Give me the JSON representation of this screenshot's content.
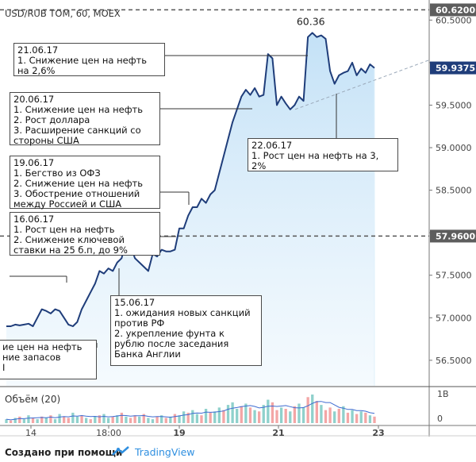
{
  "chart_data": {
    "type": "area",
    "title": "USD/RUB TOM, 60, MOEX",
    "price_axis": {
      "ticks": [
        "60.5000",
        "60.0000",
        "59.5000",
        "59.0000",
        "58.5000",
        "58.0000",
        "57.5000",
        "57.0000",
        "56.5000"
      ],
      "ylim": [
        56.2,
        60.68
      ],
      "markers": [
        {
          "label": "60.6200",
          "value": 60.62,
          "style": "gray"
        },
        {
          "label": "59.9375",
          "value": 59.9375,
          "style": "blue"
        },
        {
          "label": "57.9600",
          "value": 57.96,
          "style": "gray"
        }
      ]
    },
    "time_axis": {
      "ticks": [
        "14",
        "18:00",
        "19",
        "21",
        "23"
      ],
      "bold": [
        "19",
        "21",
        "23"
      ]
    },
    "peak_label": "60.36",
    "series": [
      {
        "values": [
          56.9,
          56.9,
          56.92,
          56.91,
          56.92,
          56.93,
          56.9,
          57.0,
          57.1,
          57.08,
          57.05,
          57.1,
          57.08,
          57.0,
          56.92,
          56.9,
          56.95,
          57.1,
          57.2,
          57.3,
          57.4,
          57.55,
          57.52,
          57.58,
          57.55,
          57.65,
          57.7,
          57.9,
          57.85,
          57.7,
          57.65,
          57.6,
          57.55,
          57.75,
          57.72,
          57.8,
          57.78,
          57.78,
          57.8,
          58.05,
          58.05,
          58.2,
          58.3,
          58.3,
          58.4,
          58.35,
          58.45,
          58.5,
          58.7,
          58.9,
          59.1,
          59.3,
          59.45,
          59.6,
          59.68,
          59.62,
          59.7,
          59.6,
          59.62,
          60.1,
          60.05,
          59.5,
          59.6,
          59.52,
          59.45,
          59.5,
          59.6,
          59.55,
          60.3,
          60.35,
          60.3,
          60.32,
          60.28,
          59.9,
          59.75,
          59.85,
          59.88,
          59.9,
          60.0,
          59.85,
          59.93,
          59.88,
          59.98,
          59.9375
        ]
      }
    ],
    "volume": {
      "label": "Объём (20)",
      "axis_ticks": [
        "1B",
        "0"
      ],
      "values": [
        3,
        2,
        4,
        5,
        3,
        6,
        4,
        3,
        5,
        4,
        6,
        3,
        7,
        5,
        4,
        8,
        5,
        6,
        4,
        3,
        5,
        6,
        7,
        4,
        5,
        6,
        8,
        5,
        4,
        6,
        5,
        7,
        4,
        3,
        5,
        6,
        4,
        5,
        7,
        6,
        9,
        8,
        10,
        7,
        6,
        11,
        8,
        9,
        12,
        10,
        14,
        16,
        11,
        13,
        15,
        12,
        10,
        9,
        14,
        18,
        16,
        10,
        12,
        11,
        9,
        13,
        15,
        12,
        20,
        22,
        17,
        14,
        10,
        12,
        9,
        11,
        13,
        8,
        10,
        7,
        9,
        8,
        6,
        5
      ],
      "colors": [
        "up",
        "down",
        "up",
        "down",
        "up",
        "up",
        "down",
        "up",
        "down",
        "up",
        "down",
        "up",
        "up",
        "down",
        "down",
        "up",
        "up",
        "down",
        "up",
        "down",
        "up",
        "down",
        "up",
        "up",
        "down",
        "up",
        "down",
        "up",
        "down",
        "down",
        "up",
        "down",
        "up",
        "up",
        "down",
        "up",
        "down",
        "up",
        "down",
        "up",
        "up",
        "down",
        "up",
        "up",
        "down",
        "up",
        "down",
        "up",
        "up",
        "down",
        "up",
        "up",
        "up",
        "down",
        "up",
        "down",
        "up",
        "down",
        "up",
        "up",
        "down",
        "down",
        "up",
        "down",
        "up",
        "down",
        "up",
        "up",
        "down",
        "up",
        "down",
        "up",
        "down",
        "down",
        "up",
        "down",
        "up",
        "down",
        "up",
        "down",
        "up",
        "down",
        "up",
        "down"
      ]
    },
    "trendline_label": "",
    "colors": {
      "line": "#1f3d7a",
      "fill_top": "#b9dcf5",
      "fill_bottom": "#eef7fd",
      "up": "#8fd1cc",
      "down": "#f3a6a6",
      "price_badge": "#1f3d7a"
    }
  },
  "annotations": [
    {
      "id": "a2106",
      "text": "21.06.17\n1. Снижение цен на нефть\nна 2,6%"
    },
    {
      "id": "a2006",
      "text": "20.06.17\n1. Снижение цен на нефть\n2. Рост доллара\n3. Расширение санкций со\nстороны США"
    },
    {
      "id": "a1906",
      "text": "19.06.17\n1. Бегство из ОФЗ\n2. Снижение цен на нефть\n3. Обострение отношений\nмежду Россией и США"
    },
    {
      "id": "a1606",
      "text": "16.06.17\n1. Рост цен на нефть\n2. Снижение ключевой\nставки на 25 б.п, до 9%"
    },
    {
      "id": "a1506",
      "text": "15.06.17\n1. ожидания новых санкций\nпротив РФ\n2. укрепление фунта к\nрублю после заседания\nБанка Англии"
    },
    {
      "id": "a2206",
      "text": "22.06.17\n1. Рост цен на нефть на 3,\n2%"
    },
    {
      "id": "acut",
      "text": "ие цен на нефть\nние запасов\nI"
    }
  ],
  "footer": {
    "created_with": "Создано при помощи",
    "brand": "TradingView"
  }
}
